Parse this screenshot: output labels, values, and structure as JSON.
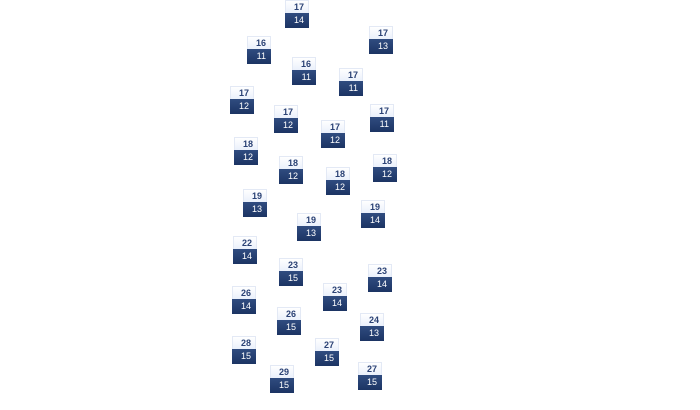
{
  "tiles": [
    {
      "high": "17",
      "low": "14"
    },
    {
      "high": "17",
      "low": "13"
    },
    {
      "high": "16",
      "low": "11"
    },
    {
      "high": "16",
      "low": "11"
    },
    {
      "high": "17",
      "low": "11"
    },
    {
      "high": "17",
      "low": "12"
    },
    {
      "high": "17",
      "low": "12"
    },
    {
      "high": "17",
      "low": "11"
    },
    {
      "high": "17",
      "low": "12"
    },
    {
      "high": "18",
      "low": "12"
    },
    {
      "high": "18",
      "low": "12"
    },
    {
      "high": "18",
      "low": "12"
    },
    {
      "high": "18",
      "low": "12"
    },
    {
      "high": "19",
      "low": "13"
    },
    {
      "high": "19",
      "low": "14"
    },
    {
      "high": "19",
      "low": "13"
    },
    {
      "high": "22",
      "low": "14"
    },
    {
      "high": "23",
      "low": "15"
    },
    {
      "high": "23",
      "low": "14"
    },
    {
      "high": "23",
      "low": "14"
    },
    {
      "high": "26",
      "low": "14"
    },
    {
      "high": "26",
      "low": "15"
    },
    {
      "high": "24",
      "low": "13"
    },
    {
      "high": "27",
      "low": "15"
    },
    {
      "high": "28",
      "low": "15"
    },
    {
      "high": "29",
      "low": "15"
    },
    {
      "high": "27",
      "low": "15"
    }
  ],
  "colors": {
    "tile_top": "#eaf0fb",
    "tile_bottom": "#1c3463",
    "high_text": "#2b4275"
  }
}
